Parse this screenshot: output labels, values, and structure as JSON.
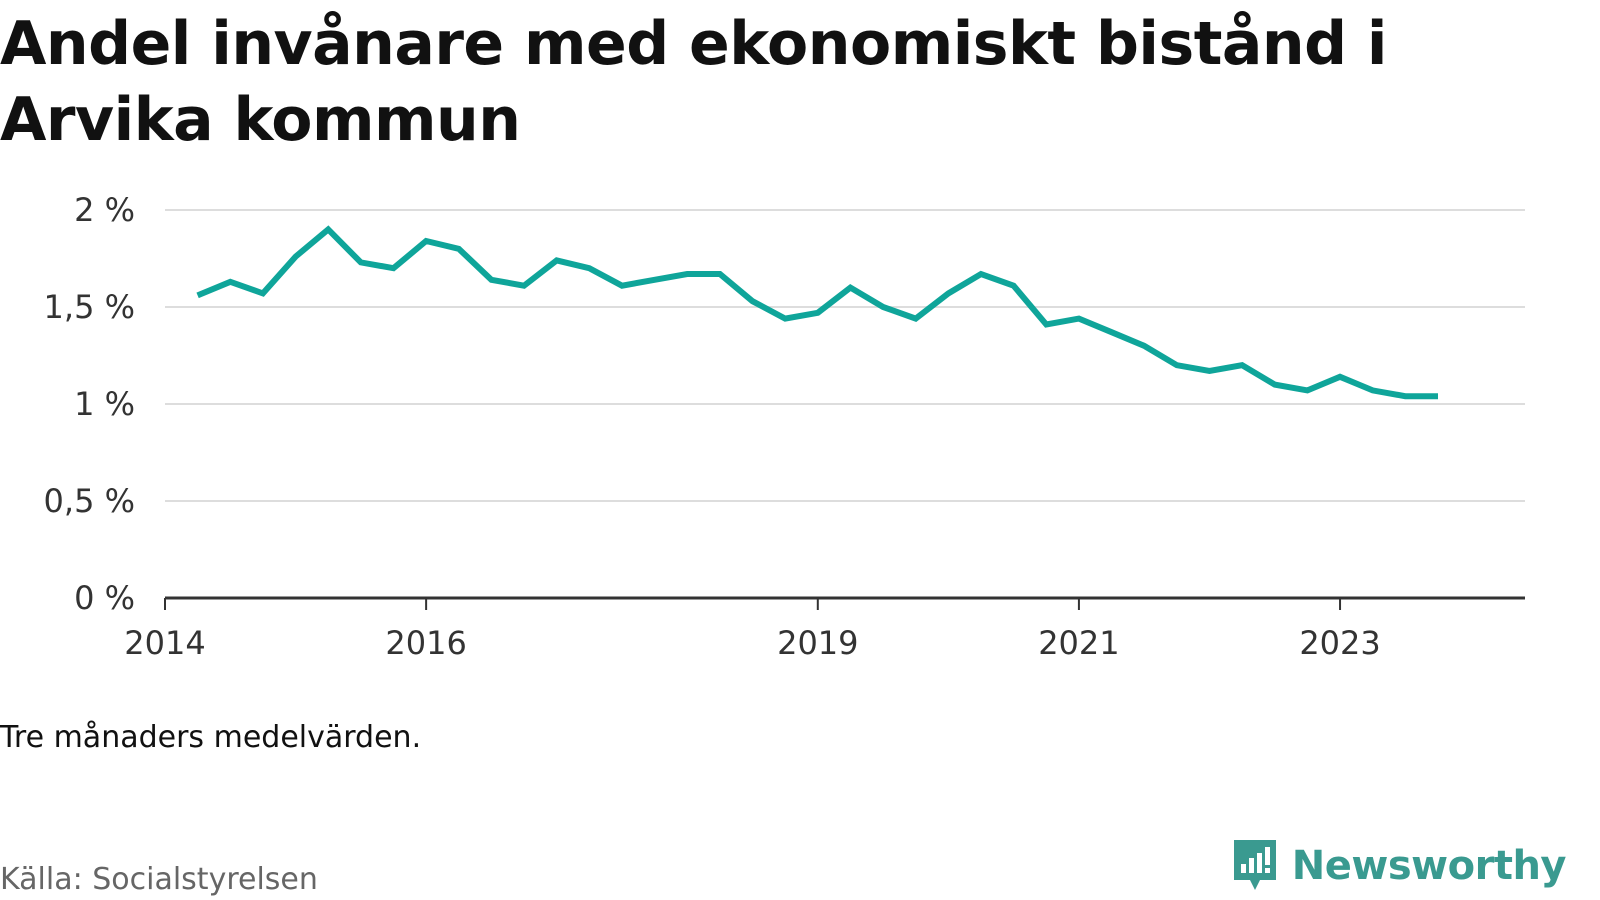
{
  "title": "Andel invånare med ekonomiskt bistånd i Arvika kommun",
  "note": "Tre månaders medelvärden.",
  "source": "Källa: Socialstyrelsen",
  "brand": {
    "name": "Newsworthy",
    "logo_icon": "newsworthy-logo-icon"
  },
  "colors": {
    "line": "#0fa59a",
    "grid": "#dddddd",
    "axis": "#333333",
    "brand": "#3a9a90"
  },
  "chart_data": {
    "type": "line",
    "title": "Andel invånare med ekonomiskt bistånd i Arvika kommun",
    "xlabel": "",
    "ylabel": "",
    "xlim": [
      "2014-01",
      "2024-06"
    ],
    "ylim": [
      0,
      2
    ],
    "grid": true,
    "yticks": [
      0,
      0.5,
      1,
      1.5,
      2
    ],
    "ytick_labels": [
      "0 %",
      "0,5 %",
      "1 %",
      "1,5 %",
      "2 %"
    ],
    "xticks": [
      "2014-01",
      "2016-01",
      "2019-01",
      "2021-01",
      "2023-01"
    ],
    "xtick_labels": [
      "2014",
      "2016",
      "2019",
      "2021",
      "2023"
    ],
    "series": [
      {
        "x": [
          "2014-04",
          "2014-07",
          "2014-10",
          "2015-01",
          "2015-04",
          "2015-07",
          "2015-10",
          "2016-01",
          "2016-04",
          "2016-07",
          "2016-10",
          "2017-01",
          "2017-04",
          "2017-07",
          "2017-10",
          "2018-01",
          "2018-04",
          "2018-07",
          "2018-10",
          "2019-01",
          "2019-04",
          "2019-07",
          "2019-10",
          "2020-01",
          "2020-04",
          "2020-07",
          "2020-10",
          "2021-01",
          "2021-04",
          "2021-07",
          "2021-10",
          "2022-01",
          "2022-04",
          "2022-07",
          "2022-10",
          "2023-01",
          "2023-04",
          "2023-07",
          "2023-10"
        ],
        "values": [
          1.56,
          1.63,
          1.57,
          1.76,
          1.9,
          1.73,
          1.7,
          1.84,
          1.8,
          1.64,
          1.61,
          1.74,
          1.7,
          1.61,
          1.64,
          1.67,
          1.67,
          1.53,
          1.44,
          1.47,
          1.6,
          1.5,
          1.44,
          1.57,
          1.67,
          1.61,
          1.41,
          1.44,
          1.37,
          1.3,
          1.2,
          1.17,
          1.2,
          1.1,
          1.07,
          1.14,
          1.07,
          1.04,
          1.04
        ]
      }
    ]
  }
}
